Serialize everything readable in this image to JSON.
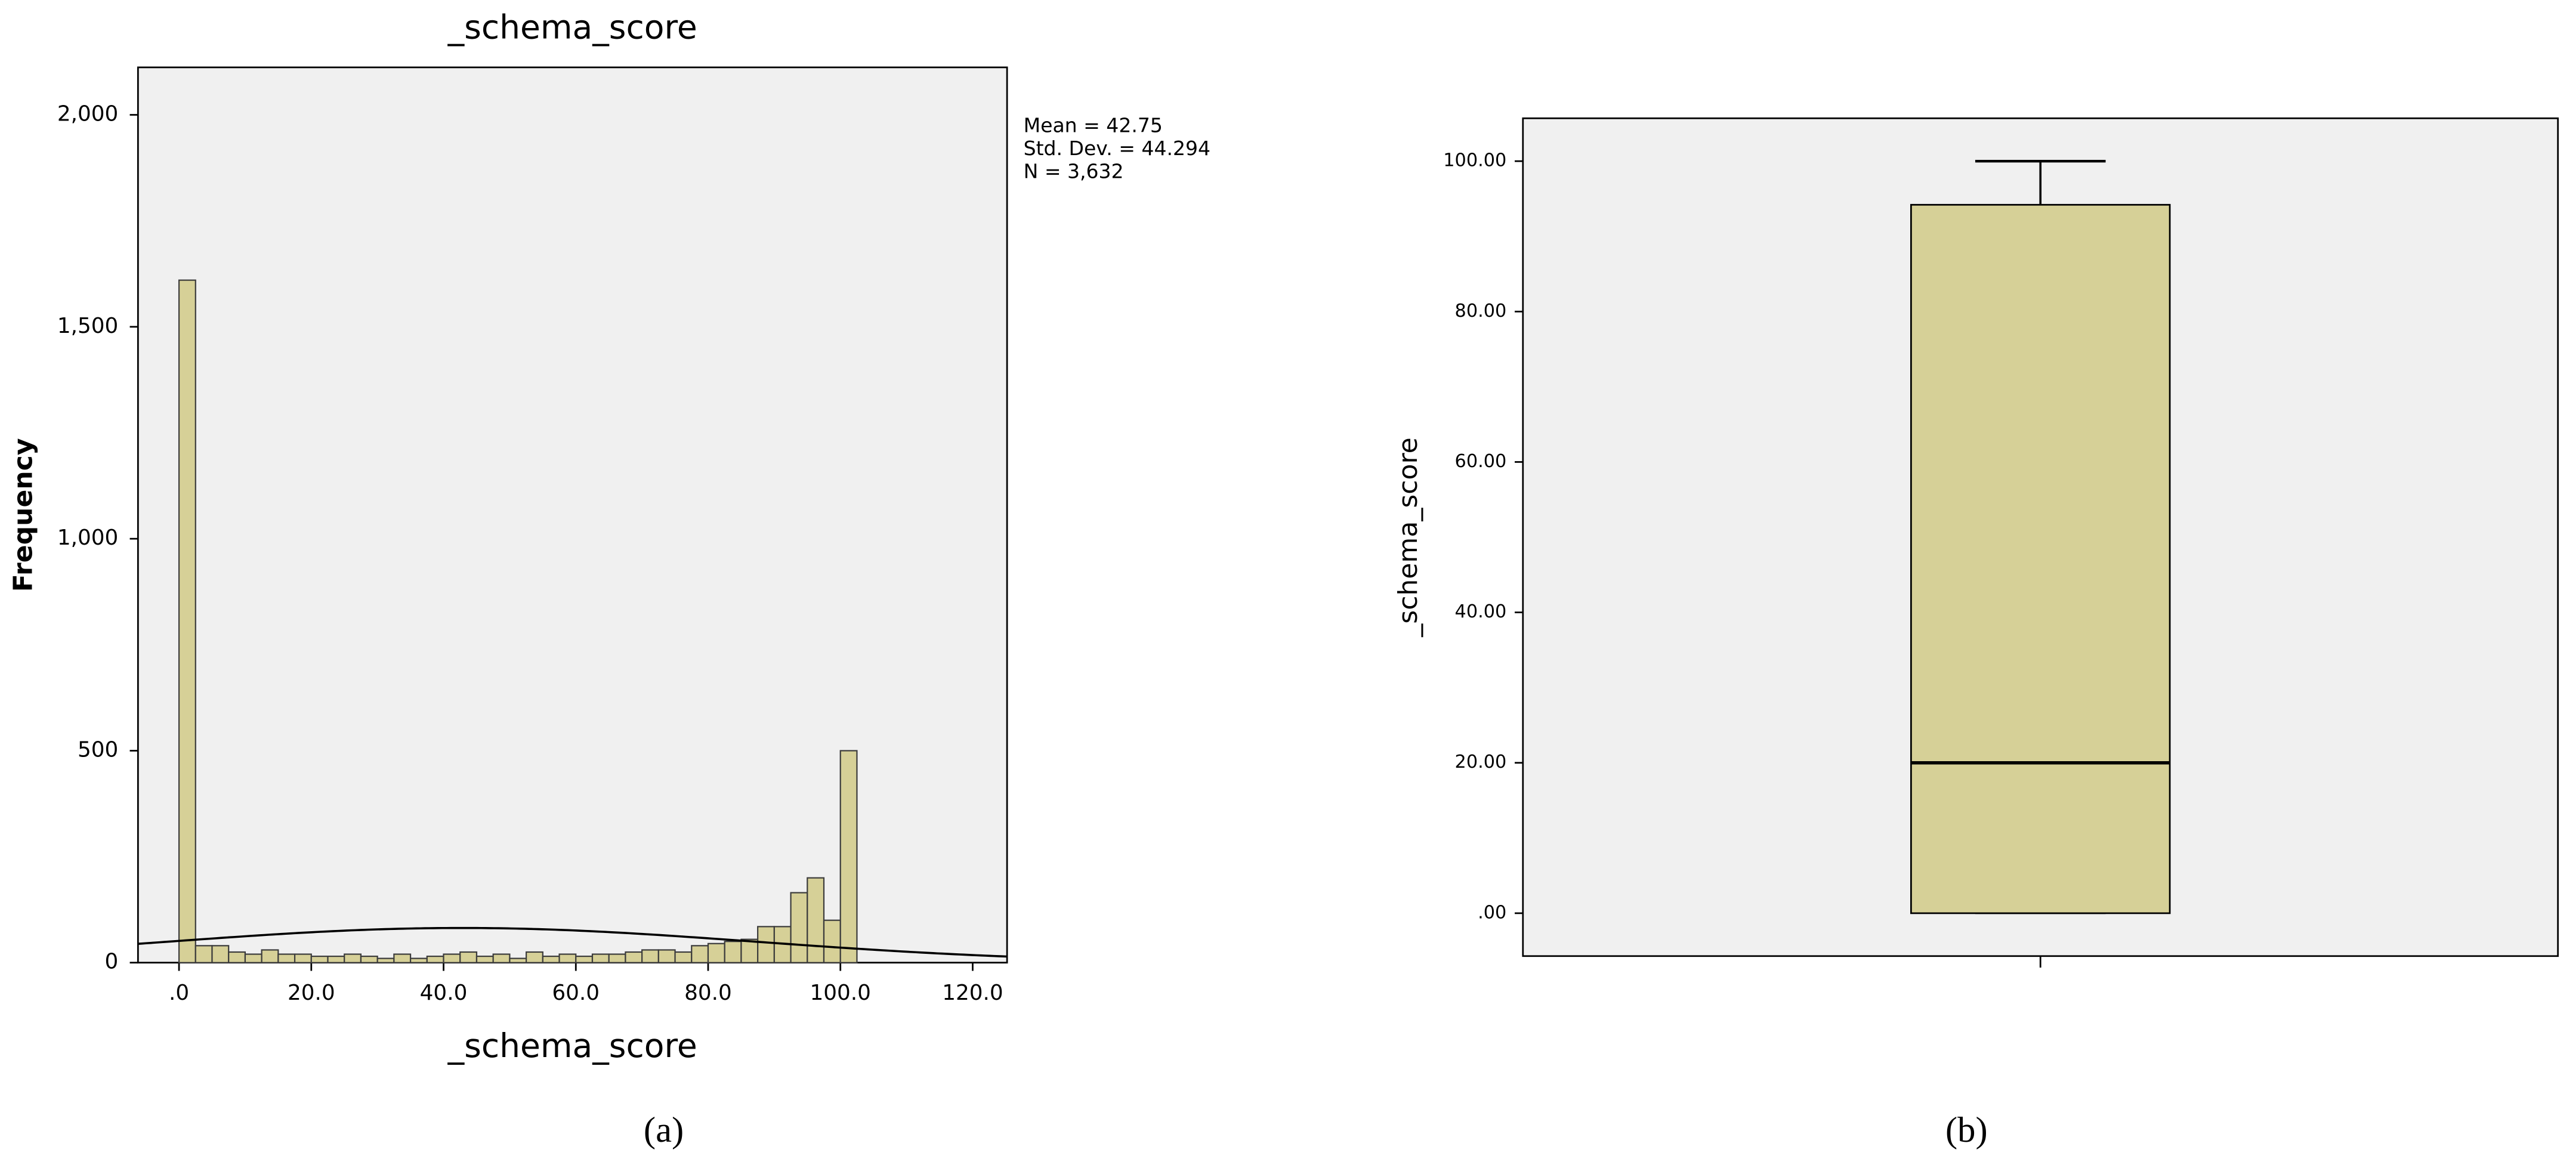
{
  "chart_data": [
    {
      "type": "histogram",
      "title": "_schema_score",
      "x_label": "_schema_score",
      "y_label": "Frequency",
      "bins": [
        0,
        2.5,
        5,
        7.5,
        10,
        12.5,
        15,
        17.5,
        20,
        22.5,
        25,
        27.5,
        30,
        32.5,
        35,
        37.5,
        40,
        42.5,
        45,
        47.5,
        50,
        52.5,
        55,
        57.5,
        60,
        62.5,
        65,
        67.5,
        70,
        72.5,
        75,
        77.5,
        80,
        82.5,
        85,
        87.5,
        90,
        92.5,
        95,
        97.5,
        100,
        102.5
      ],
      "values": [
        1610,
        40,
        40,
        25,
        20,
        30,
        20,
        20,
        15,
        15,
        20,
        15,
        10,
        20,
        10,
        15,
        20,
        25,
        15,
        20,
        10,
        25,
        15,
        20,
        15,
        20,
        20,
        25,
        30,
        30,
        25,
        40,
        45,
        50,
        55,
        85,
        85,
        165,
        200,
        100,
        500
      ],
      "color": "#d6d097",
      "xlim": [
        -6.2,
        125.2
      ],
      "xticks": [
        {
          "value": 0,
          "label": ".0"
        },
        {
          "value": 20,
          "label": "20.0"
        },
        {
          "value": 40,
          "label": "40.0"
        },
        {
          "value": 60,
          "label": "60.0"
        },
        {
          "value": 80,
          "label": "80.0"
        },
        {
          "value": 100,
          "label": "100.0"
        },
        {
          "value": 120,
          "label": "120.0"
        }
      ],
      "ylim": [
        0,
        2112
      ],
      "yticks": [
        0,
        500,
        {
          "value": 1000,
          "label": "1,000"
        },
        {
          "value": 1500,
          "label": "1,500"
        },
        {
          "value": 2000,
          "label": "2,000"
        }
      ],
      "annotations": [
        "Mean = 42.75",
        "Std. Dev. = 44.294",
        "N = 3,632"
      ],
      "normal_curve": {
        "mean": 42.75,
        "sd": 44.294,
        "n": 3632
      },
      "caption": "(a)"
    },
    {
      "type": "box",
      "y_label": "_schema_score",
      "categories": [
        null
      ],
      "boxes": [
        {
          "min": 0,
          "q1": 0,
          "median": 20,
          "q3": 94.2,
          "max": 100
        }
      ],
      "color": "#d6d097",
      "ylim": [
        -5.7,
        105.7
      ],
      "yticks": [
        {
          "value": 0,
          "label": ".00"
        },
        {
          "value": 20,
          "label": "20.00"
        },
        {
          "value": 40,
          "label": "40.00"
        },
        {
          "value": 60,
          "label": "60.00"
        },
        {
          "value": 80,
          "label": "80.00"
        },
        {
          "value": 100,
          "label": "100.00"
        }
      ],
      "caption": "(b)"
    }
  ]
}
